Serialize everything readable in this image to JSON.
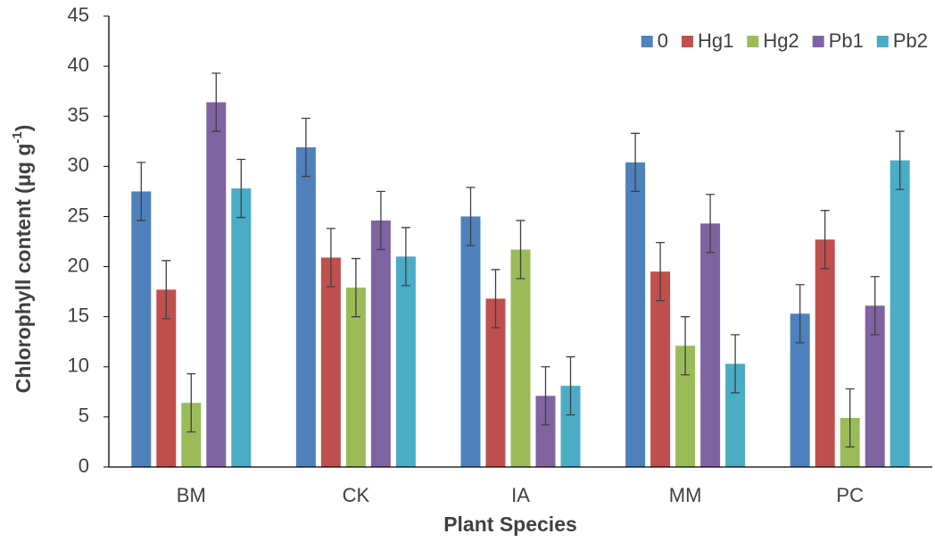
{
  "chart_data": {
    "type": "bar",
    "xlabel": "Plant Species",
    "ylabel": "Chlorophyll content (μg g",
    "ylabel_sup": "-1",
    "ylabel_end": ")",
    "categories": [
      "BM",
      "CK",
      "IA",
      "MM",
      "PC"
    ],
    "series": [
      {
        "name": "0",
        "color": "#4f81bd",
        "values": [
          27.5,
          31.9,
          25.0,
          30.4,
          15.3
        ],
        "errors": [
          2.9,
          2.9,
          2.9,
          2.9,
          2.9
        ]
      },
      {
        "name": "Hg1",
        "color": "#c0504d",
        "values": [
          17.7,
          20.9,
          16.8,
          19.5,
          22.7
        ],
        "errors": [
          2.9,
          2.9,
          2.9,
          2.9,
          2.9
        ]
      },
      {
        "name": "Hg2",
        "color": "#9bbb59",
        "values": [
          6.4,
          17.9,
          21.7,
          12.1,
          4.9
        ],
        "errors": [
          2.9,
          2.9,
          2.9,
          2.9,
          2.9
        ]
      },
      {
        "name": "Pb1",
        "color": "#8064a2",
        "values": [
          36.4,
          24.6,
          7.1,
          24.3,
          16.1
        ],
        "errors": [
          2.9,
          2.9,
          2.9,
          2.9,
          2.9
        ]
      },
      {
        "name": "Pb2",
        "color": "#4bacc6",
        "values": [
          27.8,
          21.0,
          8.1,
          10.3,
          30.6
        ],
        "errors": [
          2.9,
          2.9,
          2.9,
          2.9,
          2.9
        ]
      }
    ],
    "ylim": [
      0,
      45
    ],
    "yticks": [
      0,
      5,
      10,
      15,
      20,
      25,
      30,
      35,
      40,
      45
    ],
    "grid": false,
    "legend": "top-right"
  }
}
